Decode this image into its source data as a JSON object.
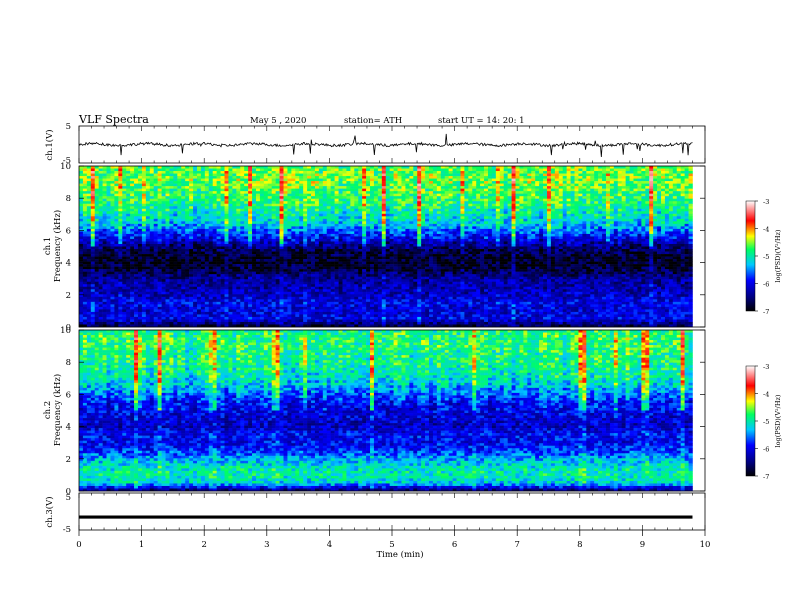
{
  "header": {
    "title": "VLF Spectra",
    "date": "May 5 , 2020",
    "station": "station= ATH",
    "start": "start UT = 14: 20: 1"
  },
  "colorbar": {
    "label": "log(PSD)(V²/Hz)",
    "ticks": [
      "-3",
      "-4",
      "-5",
      "-6",
      "-7"
    ]
  },
  "chart_data": [
    {
      "type": "line",
      "name": "ch1-waveform",
      "ylabel": "ch.1(V)",
      "ylim": [
        -5,
        5
      ],
      "ytick_labels": [
        "5",
        "-5"
      ],
      "xlim": [
        0,
        10
      ],
      "baseline": 0.0,
      "noise_amplitude": 0.7,
      "spike_amplitude": 3.2
    },
    {
      "type": "heatmap",
      "name": "ch1-spectrogram",
      "ylabel": "Frequency (kHz)",
      "channel_label": "ch.1",
      "ylim": [
        0,
        10
      ],
      "ytick_labels": [
        "0",
        "2",
        "4",
        "6",
        "8",
        "10"
      ],
      "xlim": [
        0,
        9.8
      ],
      "colorbar_range": [
        -7,
        -3
      ],
      "profile_khz": [
        0,
        0.5,
        1,
        1.5,
        2,
        2.5,
        3,
        3.5,
        4,
        4.5,
        5,
        5.5,
        6,
        6.5,
        7,
        7.5,
        8,
        8.5,
        9,
        9.5,
        10
      ],
      "profile_log_psd": [
        -6.8,
        -6.0,
        -6.1,
        -6.0,
        -6.2,
        -6.3,
        -6.4,
        -6.7,
        -6.9,
        -6.8,
        -6.5,
        -6.0,
        -5.6,
        -5.2,
        -5.1,
        -4.9,
        -4.8,
        -4.7,
        -4.6,
        -4.6,
        -4.7
      ]
    },
    {
      "type": "heatmap",
      "name": "ch2-spectrogram",
      "ylabel": "Frequency (kHz)",
      "channel_label": "ch.2",
      "ylim": [
        0,
        10
      ],
      "ytick_labels": [
        "0",
        "2",
        "4",
        "6",
        "8",
        "10"
      ],
      "xlim": [
        0,
        9.8
      ],
      "colorbar_range": [
        -7,
        -3
      ],
      "profile_khz": [
        0,
        0.5,
        1,
        1.5,
        2,
        2.5,
        3,
        3.5,
        4,
        4.5,
        5,
        5.5,
        6,
        6.5,
        7,
        7.5,
        8,
        8.5,
        9,
        9.5,
        10
      ],
      "profile_log_psd": [
        -6.6,
        -5.2,
        -5.0,
        -5.1,
        -5.4,
        -5.8,
        -6.0,
        -5.9,
        -6.2,
        -6.1,
        -6.0,
        -5.9,
        -5.6,
        -5.3,
        -5.1,
        -5.0,
        -4.9,
        -4.9,
        -4.8,
        -4.8,
        -4.9
      ]
    },
    {
      "type": "line",
      "name": "ch3-waveform",
      "ylabel": "ch.3(V)",
      "ylim": [
        -5,
        5
      ],
      "ytick_labels": [
        "5",
        "-5"
      ],
      "xlim": [
        0,
        10
      ],
      "baseline": -1.5
    }
  ],
  "xaxis": {
    "label": "Time (min)",
    "ticks": [
      "0",
      "1",
      "2",
      "3",
      "4",
      "5",
      "6",
      "7",
      "8",
      "9",
      "10"
    ]
  }
}
